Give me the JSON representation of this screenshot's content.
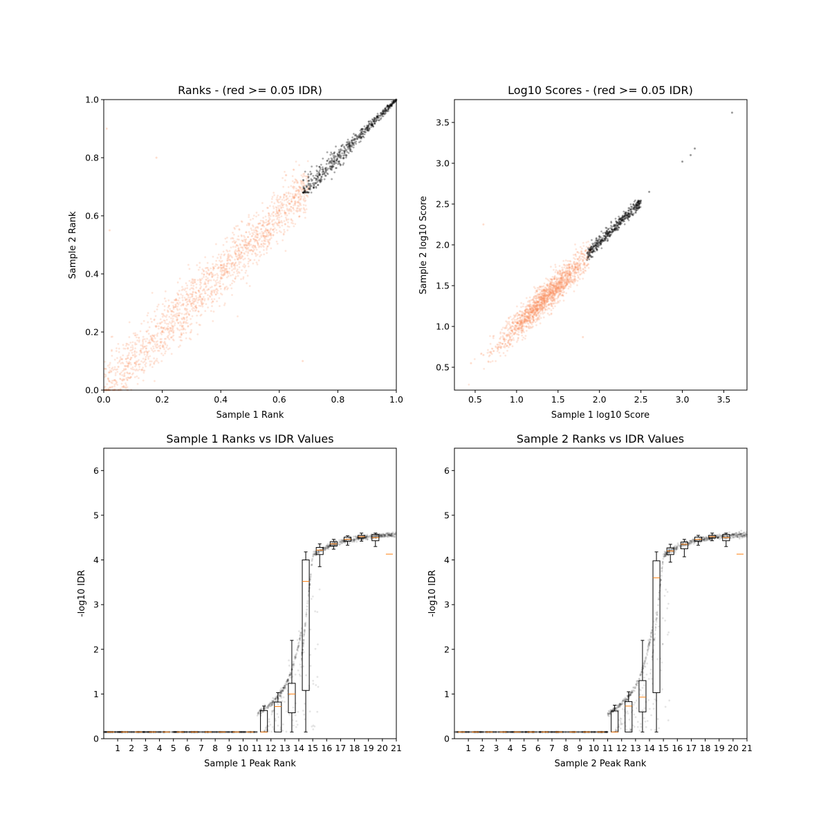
{
  "chart_data": [
    {
      "type": "scatter",
      "title": "Ranks - (red >= 0.05 IDR)",
      "xlabel": "Sample 1 Rank",
      "ylabel": "Sample 2 Rank",
      "xlim": [
        0,
        1.0
      ],
      "ylim": [
        0,
        1.0
      ],
      "xticks": [
        "0.0",
        "0.2",
        "0.4",
        "0.6",
        "0.8",
        "1.0"
      ],
      "yticks": [
        "0.0",
        "0.2",
        "0.4",
        "0.6",
        "0.8",
        "1.0"
      ],
      "colors": {
        "idr_fail": "#fc8d59",
        "idr_pass": "#000000"
      },
      "series": [
        {
          "category": "IDR >= 0.05",
          "color": "#fc8d59",
          "points": [
            [
              0.02,
              0.03
            ],
            [
              0.05,
              0.08
            ],
            [
              0.08,
              0.06
            ],
            [
              0.1,
              0.12
            ],
            [
              0.12,
              0.18
            ],
            [
              0.15,
              0.13
            ],
            [
              0.18,
              0.22
            ],
            [
              0.2,
              0.2
            ],
            [
              0.22,
              0.27
            ],
            [
              0.25,
              0.24
            ],
            [
              0.28,
              0.31
            ],
            [
              0.3,
              0.29
            ],
            [
              0.33,
              0.35
            ],
            [
              0.35,
              0.38
            ],
            [
              0.38,
              0.36
            ],
            [
              0.4,
              0.43
            ],
            [
              0.42,
              0.41
            ],
            [
              0.45,
              0.47
            ],
            [
              0.48,
              0.5
            ],
            [
              0.5,
              0.48
            ],
            [
              0.52,
              0.55
            ],
            [
              0.55,
              0.53
            ],
            [
              0.58,
              0.6
            ],
            [
              0.6,
              0.62
            ],
            [
              0.62,
              0.61
            ],
            [
              0.65,
              0.66
            ],
            [
              0.68,
              0.69
            ],
            [
              0.7,
              0.7
            ],
            [
              0.01,
              0.9
            ],
            [
              0.18,
              0.8
            ],
            [
              0.68,
              0.1
            ],
            [
              0.02,
              0.55
            ]
          ]
        },
        {
          "category": "IDR < 0.05",
          "color": "#000000",
          "points": [
            [
              0.7,
              0.72
            ],
            [
              0.72,
              0.73
            ],
            [
              0.75,
              0.76
            ],
            [
              0.78,
              0.77
            ],
            [
              0.8,
              0.81
            ],
            [
              0.82,
              0.8
            ],
            [
              0.85,
              0.86
            ],
            [
              0.88,
              0.87
            ],
            [
              0.9,
              0.91
            ],
            [
              0.92,
              0.93
            ],
            [
              0.95,
              0.95
            ],
            [
              0.97,
              0.98
            ],
            [
              1.0,
              1.0
            ]
          ]
        }
      ]
    },
    {
      "type": "scatter",
      "title": "Log10 Scores - (red >= 0.05 IDR)",
      "xlabel": "Sample 1 log10 Score",
      "ylabel": "Sample 2 log10 Score",
      "xlim": [
        0.25,
        3.78
      ],
      "ylim": [
        0.22,
        3.78
      ],
      "xticks": [
        "0.5",
        "1.0",
        "1.5",
        "2.0",
        "2.5",
        "3.0",
        "3.5"
      ],
      "yticks": [
        "0.5",
        "1.0",
        "1.5",
        "2.0",
        "2.5",
        "3.0",
        "3.5"
      ],
      "series": [
        {
          "category": "IDR >= 0.05",
          "color": "#fc8d59",
          "points": [
            [
              0.45,
              0.55
            ],
            [
              0.6,
              0.65
            ],
            [
              0.8,
              0.85
            ],
            [
              1.0,
              1.05
            ],
            [
              1.1,
              1.15
            ],
            [
              1.2,
              1.25
            ],
            [
              1.3,
              1.35
            ],
            [
              1.4,
              1.45
            ],
            [
              1.5,
              1.5
            ],
            [
              1.6,
              1.6
            ],
            [
              1.7,
              1.7
            ],
            [
              1.8,
              1.8
            ],
            [
              1.85,
              1.85
            ],
            [
              0.6,
              2.25
            ],
            [
              1.8,
              0.87
            ]
          ]
        },
        {
          "category": "IDR < 0.05",
          "color": "#000000",
          "points": [
            [
              1.88,
              1.9
            ],
            [
              1.95,
              2.0
            ],
            [
              2.05,
              2.05
            ],
            [
              2.15,
              2.15
            ],
            [
              2.25,
              2.25
            ],
            [
              2.35,
              2.35
            ],
            [
              2.45,
              2.45
            ],
            [
              2.6,
              2.65
            ],
            [
              3.0,
              3.02
            ],
            [
              3.1,
              3.1
            ],
            [
              3.15,
              3.18
            ],
            [
              3.6,
              3.62
            ]
          ]
        }
      ]
    },
    {
      "type": "box",
      "title": "Sample 1 Ranks vs IDR Values",
      "xlabel": "Sample 1 Peak Rank",
      "ylabel": "-log10 IDR",
      "ylim": [
        0,
        6.5
      ],
      "xticks": [
        "1",
        "2",
        "3",
        "4",
        "5",
        "6",
        "7",
        "8",
        "9",
        "10",
        "11",
        "12",
        "13",
        "14",
        "15",
        "16",
        "17",
        "18",
        "19",
        "20",
        "21"
      ],
      "yticks": [
        "0",
        "1",
        "2",
        "3",
        "4",
        "5",
        "6"
      ],
      "colors": {
        "median": "#ff7f0e",
        "points": "#000000"
      },
      "boxes": [
        {
          "pos": 1,
          "low": 0.15,
          "q1": 0.15,
          "med": 0.15,
          "q3": 0.15,
          "high": 0.15
        },
        {
          "pos": 2,
          "low": 0.15,
          "q1": 0.15,
          "med": 0.15,
          "q3": 0.15,
          "high": 0.15
        },
        {
          "pos": 3,
          "low": 0.15,
          "q1": 0.15,
          "med": 0.15,
          "q3": 0.15,
          "high": 0.15
        },
        {
          "pos": 4,
          "low": 0.15,
          "q1": 0.15,
          "med": 0.15,
          "q3": 0.15,
          "high": 0.15
        },
        {
          "pos": 5,
          "low": 0.15,
          "q1": 0.15,
          "med": 0.15,
          "q3": 0.15,
          "high": 0.15
        },
        {
          "pos": 6,
          "low": 0.15,
          "q1": 0.15,
          "med": 0.15,
          "q3": 0.15,
          "high": 0.15
        },
        {
          "pos": 7,
          "low": 0.15,
          "q1": 0.15,
          "med": 0.15,
          "q3": 0.15,
          "high": 0.15
        },
        {
          "pos": 8,
          "low": 0.15,
          "q1": 0.15,
          "med": 0.15,
          "q3": 0.15,
          "high": 0.15
        },
        {
          "pos": 9,
          "low": 0.15,
          "q1": 0.15,
          "med": 0.15,
          "q3": 0.15,
          "high": 0.15
        },
        {
          "pos": 10,
          "low": 0.15,
          "q1": 0.15,
          "med": 0.15,
          "q3": 0.15,
          "high": 0.15
        },
        {
          "pos": 11,
          "low": 0.15,
          "q1": 0.15,
          "med": 0.15,
          "q3": 0.15,
          "high": 0.15
        },
        {
          "pos": 12,
          "low": 0.15,
          "q1": 0.15,
          "med": 0.15,
          "q3": 0.63,
          "high": 0.73
        },
        {
          "pos": 13,
          "low": 0.15,
          "q1": 0.15,
          "med": 0.72,
          "q3": 0.82,
          "high": 1.03
        },
        {
          "pos": 14,
          "low": 0.15,
          "q1": 0.58,
          "med": 1.0,
          "q3": 1.24,
          "high": 2.2
        },
        {
          "pos": 15,
          "low": 0.15,
          "q1": 1.08,
          "med": 3.52,
          "q3": 4.0,
          "high": 4.18
        },
        {
          "pos": 16,
          "low": 3.85,
          "q1": 4.12,
          "med": 4.22,
          "q3": 4.28,
          "high": 4.36
        },
        {
          "pos": 17,
          "low": 4.24,
          "q1": 4.31,
          "med": 4.36,
          "q3": 4.41,
          "high": 4.46
        },
        {
          "pos": 18,
          "low": 4.33,
          "q1": 4.42,
          "med": 4.46,
          "q3": 4.51,
          "high": 4.54
        },
        {
          "pos": 19,
          "low": 4.42,
          "q1": 4.49,
          "med": 4.52,
          "q3": 4.55,
          "high": 4.6
        },
        {
          "pos": 20,
          "low": 4.3,
          "q1": 4.43,
          "med": 4.5,
          "q3": 4.57,
          "high": 4.6
        },
        {
          "pos": 21,
          "low": 4.13,
          "q1": 4.13,
          "med": 4.13,
          "q3": 4.13,
          "high": 4.13
        }
      ]
    },
    {
      "type": "box",
      "title": "Sample 2 Ranks vs IDR Values",
      "xlabel": "Sample 2 Peak Rank",
      "ylabel": "-log10 IDR",
      "ylim": [
        0,
        6.5
      ],
      "xticks": [
        "1",
        "2",
        "3",
        "4",
        "5",
        "6",
        "7",
        "8",
        "9",
        "10",
        "11",
        "12",
        "13",
        "14",
        "15",
        "16",
        "17",
        "18",
        "19",
        "20",
        "21"
      ],
      "yticks": [
        "0",
        "1",
        "2",
        "3",
        "4",
        "5",
        "6"
      ],
      "boxes": [
        {
          "pos": 1,
          "low": 0.15,
          "q1": 0.15,
          "med": 0.15,
          "q3": 0.15,
          "high": 0.15
        },
        {
          "pos": 2,
          "low": 0.15,
          "q1": 0.15,
          "med": 0.15,
          "q3": 0.15,
          "high": 0.15
        },
        {
          "pos": 3,
          "low": 0.15,
          "q1": 0.15,
          "med": 0.15,
          "q3": 0.15,
          "high": 0.15
        },
        {
          "pos": 4,
          "low": 0.15,
          "q1": 0.15,
          "med": 0.15,
          "q3": 0.15,
          "high": 0.15
        },
        {
          "pos": 5,
          "low": 0.15,
          "q1": 0.15,
          "med": 0.15,
          "q3": 0.15,
          "high": 0.15
        },
        {
          "pos": 6,
          "low": 0.15,
          "q1": 0.15,
          "med": 0.15,
          "q3": 0.15,
          "high": 0.15
        },
        {
          "pos": 7,
          "low": 0.15,
          "q1": 0.15,
          "med": 0.15,
          "q3": 0.15,
          "high": 0.15
        },
        {
          "pos": 8,
          "low": 0.15,
          "q1": 0.15,
          "med": 0.15,
          "q3": 0.15,
          "high": 0.15
        },
        {
          "pos": 9,
          "low": 0.15,
          "q1": 0.15,
          "med": 0.15,
          "q3": 0.15,
          "high": 0.15
        },
        {
          "pos": 10,
          "low": 0.15,
          "q1": 0.15,
          "med": 0.15,
          "q3": 0.15,
          "high": 0.15
        },
        {
          "pos": 11,
          "low": 0.15,
          "q1": 0.15,
          "med": 0.15,
          "q3": 0.15,
          "high": 0.15
        },
        {
          "pos": 12,
          "low": 0.15,
          "q1": 0.15,
          "med": 0.15,
          "q3": 0.62,
          "high": 0.75
        },
        {
          "pos": 13,
          "low": 0.15,
          "q1": 0.15,
          "med": 0.73,
          "q3": 0.83,
          "high": 1.05
        },
        {
          "pos": 14,
          "low": 0.15,
          "q1": 0.6,
          "med": 0.93,
          "q3": 1.3,
          "high": 2.2
        },
        {
          "pos": 15,
          "low": 0.15,
          "q1": 1.03,
          "med": 3.6,
          "q3": 3.98,
          "high": 4.18
        },
        {
          "pos": 16,
          "low": 3.95,
          "q1": 4.12,
          "med": 4.2,
          "q3": 4.27,
          "high": 4.35
        },
        {
          "pos": 17,
          "low": 4.07,
          "q1": 4.25,
          "med": 4.35,
          "q3": 4.4,
          "high": 4.46
        },
        {
          "pos": 18,
          "low": 4.33,
          "q1": 4.42,
          "med": 4.46,
          "q3": 4.51,
          "high": 4.55
        },
        {
          "pos": 19,
          "low": 4.43,
          "q1": 4.49,
          "med": 4.52,
          "q3": 4.55,
          "high": 4.6
        },
        {
          "pos": 20,
          "low": 4.3,
          "q1": 4.43,
          "med": 4.5,
          "q3": 4.57,
          "high": 4.6
        },
        {
          "pos": 21,
          "low": 4.13,
          "q1": 4.13,
          "med": 4.13,
          "q3": 4.13,
          "high": 4.13
        }
      ]
    }
  ]
}
